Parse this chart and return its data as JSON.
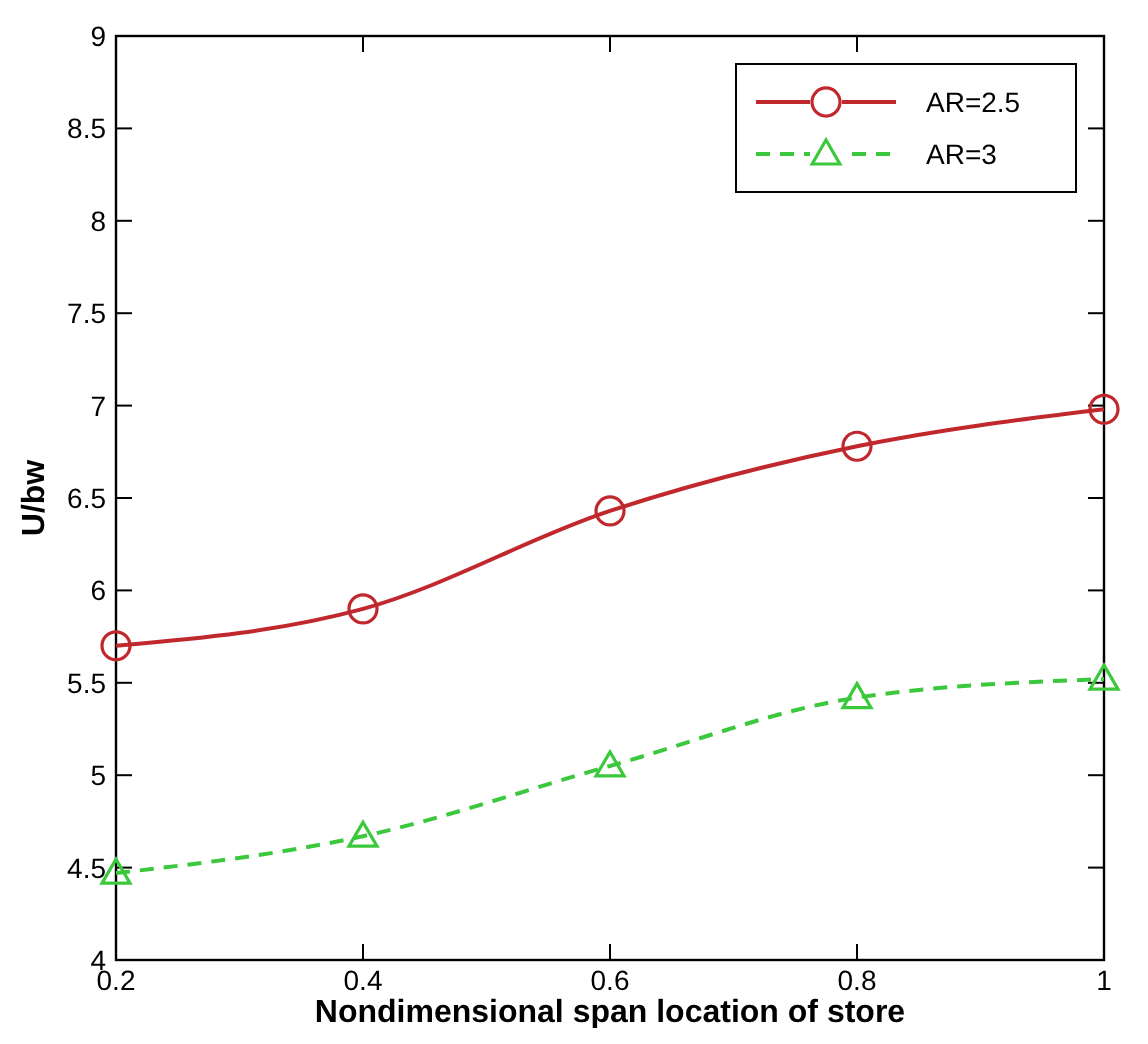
{
  "chart_data": {
    "type": "line",
    "xlabel": "Nondimensional span location of store",
    "ylabel": "U/bw",
    "x": [
      0.2,
      0.4,
      0.6,
      0.8,
      1
    ],
    "xlim": [
      0.2,
      1
    ],
    "xticks": [
      0.2,
      0.4,
      0.6,
      0.8,
      1
    ],
    "ylim": [
      4,
      9
    ],
    "yticks": [
      4,
      4.5,
      5,
      5.5,
      6,
      6.5,
      7,
      7.5,
      8,
      8.5,
      9
    ],
    "grid": false,
    "legend": "top right",
    "series": [
      {
        "name": "AR=2.5",
        "color": "#c0282d",
        "values": [
          5.7,
          5.9,
          6.43,
          6.78,
          6.98
        ],
        "marker": "circle",
        "line_style": "solid"
      },
      {
        "name": "AR=3",
        "color": "#3cc83c",
        "values": [
          4.47,
          4.67,
          5.05,
          5.42,
          5.52
        ],
        "marker": "triangle",
        "line_style": "dashed"
      }
    ]
  }
}
